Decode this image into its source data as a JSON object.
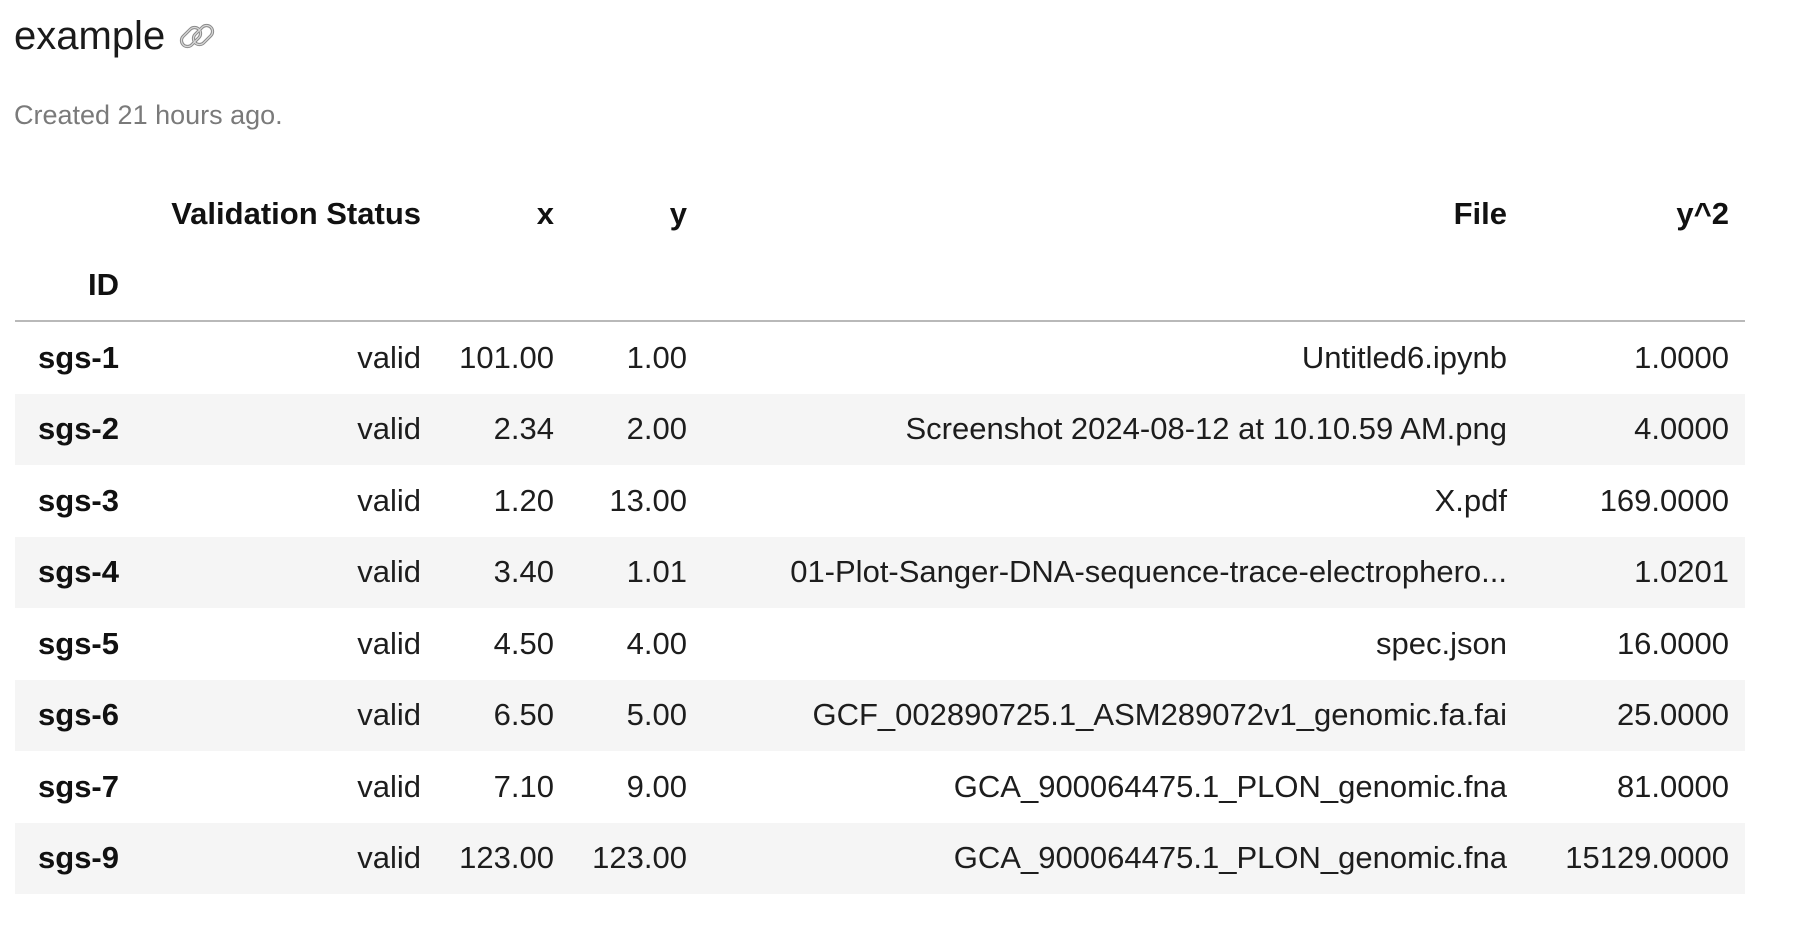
{
  "header": {
    "title": "example",
    "link_icon": "link-icon",
    "created_text": "Created 21 hours ago."
  },
  "table": {
    "columns": [
      "Validation Status",
      "x",
      "y",
      "File",
      "y^2"
    ],
    "index_name": "ID",
    "rows": [
      {
        "id": "sgs-1",
        "status": "valid",
        "x": "101.00",
        "y": "1.00",
        "file": "Untitled6.ipynb",
        "y2": "1.0000"
      },
      {
        "id": "sgs-2",
        "status": "valid",
        "x": "2.34",
        "y": "2.00",
        "file": "Screenshot 2024-08-12 at 10.10.59 AM.png",
        "y2": "4.0000"
      },
      {
        "id": "sgs-3",
        "status": "valid",
        "x": "1.20",
        "y": "13.00",
        "file": "X.pdf",
        "y2": "169.0000"
      },
      {
        "id": "sgs-4",
        "status": "valid",
        "x": "3.40",
        "y": "1.01",
        "file": "01-Plot-Sanger-DNA-sequence-trace-electrophero...",
        "y2": "1.0201"
      },
      {
        "id": "sgs-5",
        "status": "valid",
        "x": "4.50",
        "y": "4.00",
        "file": "spec.json",
        "y2": "16.0000"
      },
      {
        "id": "sgs-6",
        "status": "valid",
        "x": "6.50",
        "y": "5.00",
        "file": "GCF_002890725.1_ASM289072v1_genomic.fa.fai",
        "y2": "25.0000"
      },
      {
        "id": "sgs-7",
        "status": "valid",
        "x": "7.10",
        "y": "9.00",
        "file": "GCA_900064475.1_PLON_genomic.fna",
        "y2": "81.0000"
      },
      {
        "id": "sgs-9",
        "status": "valid",
        "x": "123.00",
        "y": "123.00",
        "file": "GCA_900064475.1_PLON_genomic.fna",
        "y2": "15129.0000"
      }
    ]
  }
}
